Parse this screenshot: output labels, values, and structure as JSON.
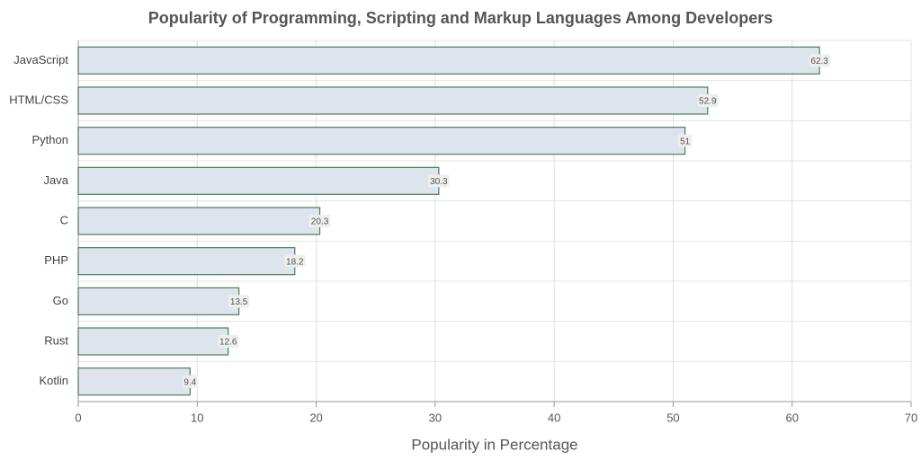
{
  "chart_data": {
    "type": "bar",
    "orientation": "horizontal",
    "title": "Popularity of Programming, Scripting and Markup Languages Among Developers",
    "x_label": "Popularity in Percentage",
    "categories": [
      "JavaScript",
      "HTML/CSS",
      "Python",
      "Java",
      "C",
      "PHP",
      "Go",
      "Rust",
      "Kotlin"
    ],
    "values": [
      62.3,
      52.9,
      51,
      30.3,
      20.3,
      18.2,
      13.5,
      12.6,
      9.4
    ],
    "color": "#dde4ee",
    "edge_color": "#4f7d5a",
    "xlim": [
      0,
      70
    ],
    "xticks": [
      0,
      10,
      20,
      30,
      40,
      50,
      60,
      70
    ],
    "grid": true
  }
}
